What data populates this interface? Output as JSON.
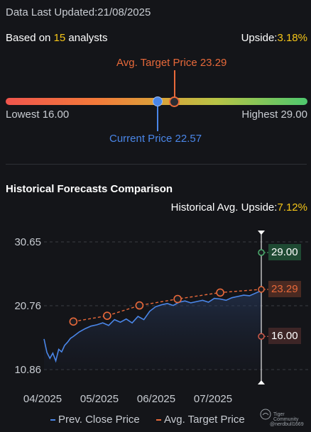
{
  "header": {
    "last_updated_label": "Data Last Updated:",
    "last_updated_value": "21/08/2025",
    "based_on_prefix": "Based on",
    "analyst_count": "15",
    "based_on_suffix": "analysts",
    "upside_label": "Upside:",
    "upside_value": "3.18%"
  },
  "price_range": {
    "avg_target_label": "Avg. Target Price 23.29",
    "lowest_label": "Lowest 16.00",
    "highest_label": "Highest 29.00",
    "current_label": "Current Price 22.57",
    "low": 16.0,
    "high": 29.0,
    "current": 22.57,
    "avg_target": 23.29
  },
  "historical": {
    "section_title": "Historical Forecasts Comparison",
    "upside_label": "Historical Avg. Upside:",
    "upside_value": "7.12%"
  },
  "colors": {
    "close_line": "#4a86e8",
    "target_line": "#e8693a",
    "high_tag": "#4cae6e",
    "low_tag": "#d05a4a",
    "accent_yellow": "#f5c518"
  },
  "legend": {
    "close_label": "Prev. Close Price",
    "target_label": "Avg. Target Price"
  },
  "watermark": {
    "brand": "Tiger Community",
    "user": "@nerdbull1669"
  },
  "chart_data": {
    "type": "line",
    "title": "Historical Forecasts Comparison",
    "x_tick_labels": [
      "04/2025",
      "05/2025",
      "06/2025",
      "07/2025"
    ],
    "y_tick_labels": [
      "30.65",
      "20.76",
      "10.86"
    ],
    "ylim": [
      10.86,
      30.65
    ],
    "grid": true,
    "legend_position": "bottom",
    "series": [
      {
        "name": "Prev. Close Price",
        "style": "solid",
        "x": [
          0,
          2,
          4,
          6,
          8,
          10,
          12,
          14,
          16,
          18,
          20,
          24,
          28,
          32,
          36,
          40,
          44,
          48,
          52,
          56,
          60,
          64,
          68,
          72,
          76,
          80,
          84,
          88,
          92,
          96,
          100,
          104,
          108,
          112,
          116,
          120,
          124,
          128,
          132,
          136,
          140,
          144,
          148
        ],
        "values": [
          15.6,
          13.5,
          12.6,
          13.4,
          12.2,
          14.0,
          13.6,
          14.6,
          15.1,
          15.7,
          16.0,
          16.7,
          17.2,
          17.6,
          17.8,
          18.1,
          17.7,
          18.6,
          18.2,
          18.7,
          18.1,
          19.1,
          18.6,
          19.9,
          20.6,
          20.9,
          21.1,
          20.8,
          21.3,
          21.5,
          21.2,
          21.4,
          21.6,
          21.3,
          21.9,
          21.8,
          21.6,
          22.0,
          22.2,
          22.4,
          22.3,
          22.7,
          23.1
        ]
      },
      {
        "name": "Avg. Target Price",
        "style": "dashed",
        "x": [
          20,
          43,
          65,
          91,
          120,
          148
        ],
        "values": [
          18.3,
          19.2,
          20.8,
          21.8,
          22.8,
          23.29
        ]
      }
    ],
    "forecast_markers": [
      {
        "label": "29.00",
        "value": 29.0,
        "kind": "high"
      },
      {
        "label": "23.29",
        "value": 23.29,
        "kind": "avg"
      },
      {
        "label": "16.00",
        "value": 16.0,
        "kind": "low"
      }
    ]
  }
}
